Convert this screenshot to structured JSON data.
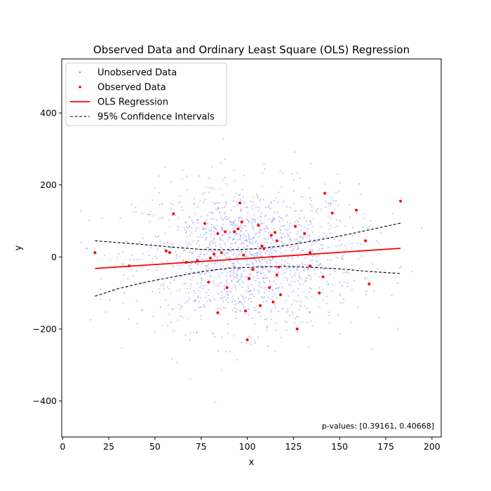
{
  "chart_data": {
    "type": "scatter",
    "title": "Observed Data and Ordinary Least Square (OLS) Regression",
    "xlabel": "x",
    "ylabel": "y",
    "xlim": [
      -0.5,
      205
    ],
    "ylim": [
      -500,
      550
    ],
    "xticks": [
      0,
      25,
      50,
      75,
      100,
      125,
      150,
      175,
      200
    ],
    "yticks": [
      -400,
      -200,
      0,
      200,
      400
    ],
    "grid": false,
    "legend_position": "top-left",
    "colors": {
      "unobserved": "#7f7fff",
      "observed": "#ff0000",
      "ols": "#ff0000",
      "ci": "#000000"
    },
    "legend": [
      {
        "label": "Unobserved Data",
        "kind": "unobserved-marker"
      },
      {
        "label": "Observed Data",
        "kind": "observed-marker"
      },
      {
        "label": "OLS Regression",
        "kind": "ols-line"
      },
      {
        "label": "95% Confidence Intervals",
        "kind": "ci-line"
      }
    ],
    "annotation": "p-values: [0.39161, 0.40668]",
    "unobserved_cloud": {
      "description_count": 1500,
      "x_mean": 100,
      "x_sd": 30,
      "y_mean": 0,
      "y_sd": 100,
      "x_range": [
        8,
        196
      ],
      "y_range": [
        -410,
        530
      ]
    },
    "observed_points": [
      [
        17.5,
        12
      ],
      [
        36,
        -25
      ],
      [
        56,
        17
      ],
      [
        58,
        12
      ],
      [
        60,
        120
      ],
      [
        67,
        -15
      ],
      [
        73,
        -10
      ],
      [
        77,
        93
      ],
      [
        79,
        -70
      ],
      [
        80,
        -3
      ],
      [
        82,
        8
      ],
      [
        84,
        65
      ],
      [
        84,
        -155
      ],
      [
        86,
        12
      ],
      [
        88,
        70
      ],
      [
        89,
        -85
      ],
      [
        93,
        70
      ],
      [
        95,
        78
      ],
      [
        96,
        150
      ],
      [
        97,
        97
      ],
      [
        98,
        5
      ],
      [
        99,
        -150
      ],
      [
        100,
        -230
      ],
      [
        101,
        -60
      ],
      [
        103,
        -35
      ],
      [
        106,
        88
      ],
      [
        107,
        -135
      ],
      [
        108,
        30
      ],
      [
        109,
        23
      ],
      [
        112,
        -85
      ],
      [
        113,
        60
      ],
      [
        114,
        -125
      ],
      [
        115,
        68
      ],
      [
        116,
        -50
      ],
      [
        116,
        45
      ],
      [
        117,
        -28
      ],
      [
        118,
        -105
      ],
      [
        126,
        85
      ],
      [
        127,
        -200
      ],
      [
        131,
        65
      ],
      [
        134,
        -25
      ],
      [
        134,
        12
      ],
      [
        139,
        -100
      ],
      [
        141,
        -55
      ],
      [
        142,
        177
      ],
      [
        146,
        122
      ],
      [
        159,
        130
      ],
      [
        164,
        45
      ],
      [
        166,
        -75
      ],
      [
        183,
        155
      ]
    ],
    "ols_line": {
      "x": [
        17.5,
        183
      ],
      "y": [
        -32,
        24
      ]
    },
    "ci_upper": {
      "x": [
        17.5,
        30,
        45,
        60,
        75,
        90,
        97,
        105,
        120,
        135,
        150,
        165,
        183
      ],
      "y": [
        45,
        40,
        34,
        27,
        21,
        20,
        21,
        23,
        31,
        44,
        58,
        74,
        94
      ]
    },
    "ci_lower": {
      "x": [
        17.5,
        30,
        45,
        60,
        75,
        90,
        97,
        105,
        120,
        135,
        150,
        165,
        183
      ],
      "y": [
        -109,
        -88,
        -70,
        -55,
        -41,
        -31,
        -30,
        -28,
        -26,
        -29,
        -33,
        -40,
        -46
      ]
    }
  }
}
